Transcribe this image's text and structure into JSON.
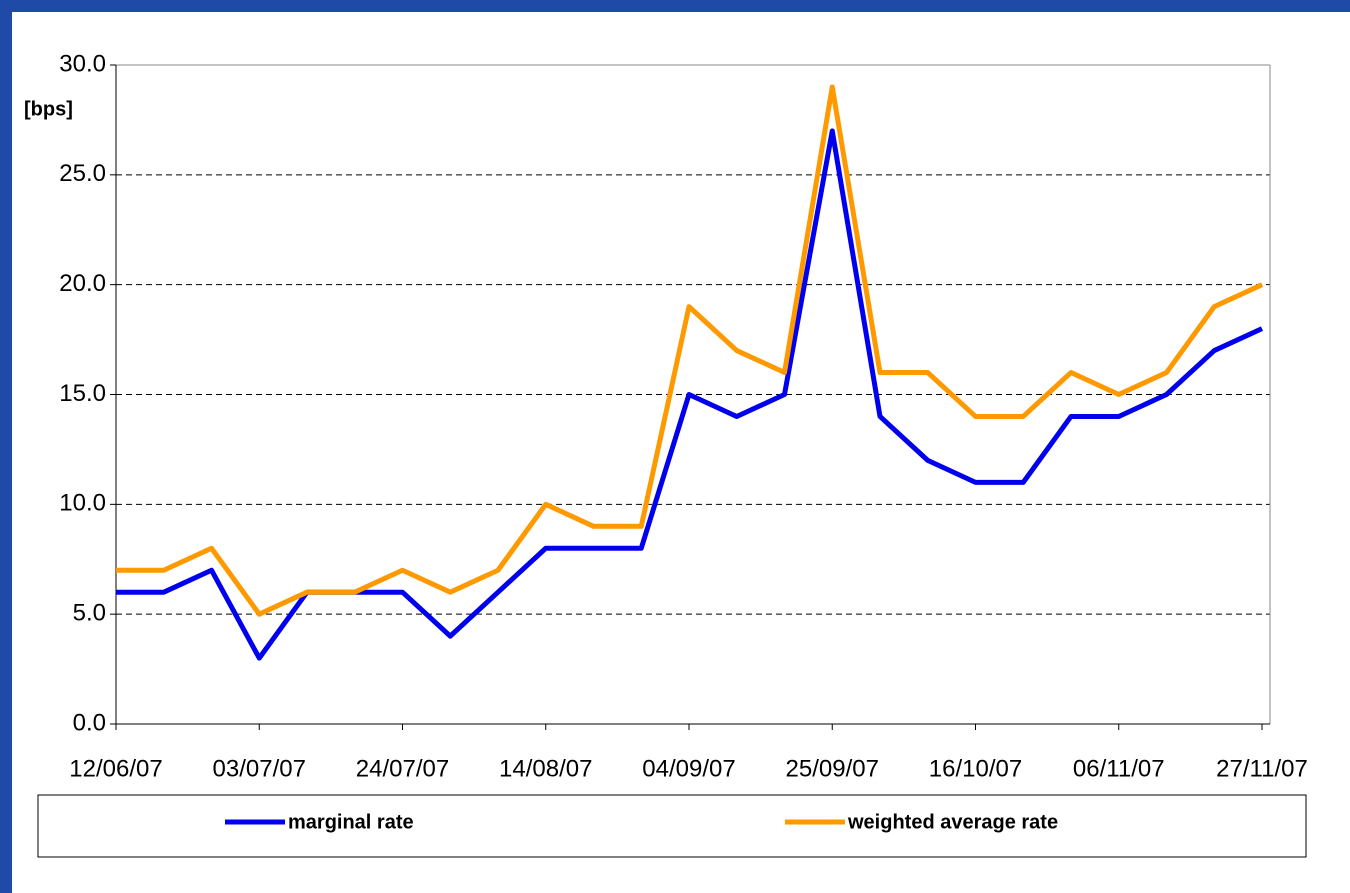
{
  "chart_data": {
    "type": "line",
    "y_label": "[bps]",
    "categories": [
      "12/06/07",
      null,
      null,
      "03/07/07",
      null,
      null,
      "24/07/07",
      null,
      null,
      "14/08/07",
      null,
      null,
      "04/09/07",
      null,
      null,
      "25/09/07",
      null,
      null,
      "16/10/07",
      null,
      null,
      "06/11/07",
      null,
      null,
      "27/11/07"
    ],
    "series": [
      {
        "name": "marginal rate",
        "color": "#0000ee",
        "values": [
          6,
          6,
          7,
          3,
          6,
          6,
          6,
          4,
          6,
          8,
          8,
          8,
          15,
          14,
          15,
          27,
          14,
          12,
          11,
          11,
          14,
          14,
          15,
          17,
          18
        ]
      },
      {
        "name": "weighted average rate",
        "color": "#ff9900",
        "values": [
          7,
          7,
          8,
          5,
          6,
          6,
          7,
          6,
          7,
          10,
          9,
          9,
          19,
          17,
          16,
          29,
          16,
          16,
          14,
          14,
          16,
          15,
          16,
          19,
          20
        ]
      }
    ],
    "ylim": [
      0,
      30
    ],
    "yticks": [
      {
        "value": 0,
        "label": "0.0"
      },
      {
        "value": 5,
        "label": "5.0"
      },
      {
        "value": 10,
        "label": "10.0"
      },
      {
        "value": 15,
        "label": "15.0"
      },
      {
        "value": 20,
        "label": "20.0"
      },
      {
        "value": 25,
        "label": "25.0"
      },
      {
        "value": 30,
        "label": "30.0"
      }
    ],
    "grid": true,
    "legend": "bottom"
  }
}
